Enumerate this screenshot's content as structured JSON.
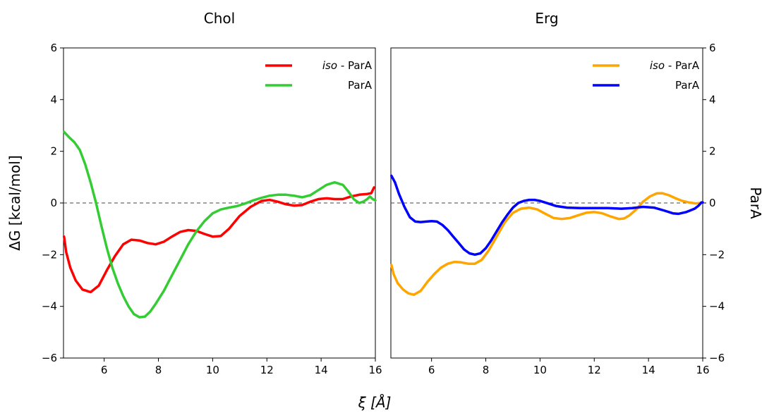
{
  "chart_data": [
    {
      "type": "line",
      "title": "Chol",
      "xlabel": "",
      "ylabel": "ΔG [kcal/mol]",
      "xlim": [
        4.5,
        16
      ],
      "ylim": [
        -6,
        6
      ],
      "xticks": [
        "6",
        "8",
        "10",
        "12",
        "14",
        "16"
      ],
      "yticks": [
        "6",
        "4",
        "2",
        "0",
        "−2",
        "−4",
        "−6"
      ],
      "reference_line": {
        "y": 0,
        "style": "dashed"
      },
      "legend_position": "top-right",
      "series": [
        {
          "name": "iso - ParA",
          "name_italic": "iso",
          "name_rest": " - ParA",
          "color": "#ff0000",
          "points": [
            [
              4.52,
              -1.3
            ],
            [
              4.6,
              -1.9
            ],
            [
              4.75,
              -2.5
            ],
            [
              4.95,
              -3.0
            ],
            [
              5.2,
              -3.35
            ],
            [
              5.5,
              -3.45
            ],
            [
              5.8,
              -3.2
            ],
            [
              6.1,
              -2.6
            ],
            [
              6.4,
              -2.05
            ],
            [
              6.7,
              -1.6
            ],
            [
              7.0,
              -1.42
            ],
            [
              7.3,
              -1.45
            ],
            [
              7.6,
              -1.55
            ],
            [
              7.9,
              -1.6
            ],
            [
              8.2,
              -1.5
            ],
            [
              8.5,
              -1.3
            ],
            [
              8.8,
              -1.12
            ],
            [
              9.1,
              -1.05
            ],
            [
              9.4,
              -1.08
            ],
            [
              9.7,
              -1.2
            ],
            [
              10.0,
              -1.3
            ],
            [
              10.3,
              -1.28
            ],
            [
              10.6,
              -1.0
            ],
            [
              11.0,
              -0.5
            ],
            [
              11.4,
              -0.15
            ],
            [
              11.8,
              0.08
            ],
            [
              12.1,
              0.12
            ],
            [
              12.4,
              0.05
            ],
            [
              12.7,
              -0.05
            ],
            [
              13.0,
              -0.1
            ],
            [
              13.3,
              -0.08
            ],
            [
              13.6,
              0.05
            ],
            [
              13.9,
              0.15
            ],
            [
              14.2,
              0.18
            ],
            [
              14.5,
              0.15
            ],
            [
              14.8,
              0.15
            ],
            [
              15.1,
              0.25
            ],
            [
              15.4,
              0.32
            ],
            [
              15.7,
              0.35
            ],
            [
              15.85,
              0.38
            ],
            [
              15.95,
              0.6
            ]
          ]
        },
        {
          "name": "ParA",
          "color": "#33cc33",
          "points": [
            [
              4.52,
              2.75
            ],
            [
              4.7,
              2.55
            ],
            [
              4.9,
              2.35
            ],
            [
              5.1,
              2.05
            ],
            [
              5.3,
              1.5
            ],
            [
              5.5,
              0.8
            ],
            [
              5.7,
              0.0
            ],
            [
              5.9,
              -0.9
            ],
            [
              6.1,
              -1.75
            ],
            [
              6.3,
              -2.5
            ],
            [
              6.5,
              -3.1
            ],
            [
              6.7,
              -3.6
            ],
            [
              6.9,
              -4.0
            ],
            [
              7.1,
              -4.3
            ],
            [
              7.3,
              -4.42
            ],
            [
              7.5,
              -4.4
            ],
            [
              7.7,
              -4.2
            ],
            [
              7.9,
              -3.9
            ],
            [
              8.2,
              -3.4
            ],
            [
              8.5,
              -2.8
            ],
            [
              8.8,
              -2.2
            ],
            [
              9.1,
              -1.6
            ],
            [
              9.4,
              -1.1
            ],
            [
              9.7,
              -0.7
            ],
            [
              10.0,
              -0.4
            ],
            [
              10.3,
              -0.25
            ],
            [
              10.6,
              -0.18
            ],
            [
              10.9,
              -0.12
            ],
            [
              11.2,
              -0.02
            ],
            [
              11.5,
              0.1
            ],
            [
              11.8,
              0.2
            ],
            [
              12.1,
              0.28
            ],
            [
              12.4,
              0.32
            ],
            [
              12.7,
              0.32
            ],
            [
              13.0,
              0.28
            ],
            [
              13.3,
              0.22
            ],
            [
              13.6,
              0.3
            ],
            [
              13.9,
              0.5
            ],
            [
              14.2,
              0.7
            ],
            [
              14.5,
              0.8
            ],
            [
              14.8,
              0.7
            ],
            [
              15.0,
              0.45
            ],
            [
              15.2,
              0.15
            ],
            [
              15.4,
              0.0
            ],
            [
              15.55,
              0.05
            ],
            [
              15.7,
              0.15
            ],
            [
              15.8,
              0.25
            ],
            [
              15.9,
              0.15
            ],
            [
              16.0,
              0.1
            ]
          ]
        }
      ]
    },
    {
      "type": "line",
      "title": "Erg",
      "xlabel": "ξ [Å]",
      "ylabel": "ParA",
      "xlim": [
        4.5,
        16
      ],
      "ylim": [
        -6,
        6
      ],
      "xticks": [
        "6",
        "8",
        "10",
        "12",
        "14",
        "16"
      ],
      "yticks": [
        "6",
        "4",
        "2",
        "0",
        "−2",
        "−4",
        "−6"
      ],
      "reference_line": {
        "y": 0,
        "style": "dashed"
      },
      "legend_position": "top-right",
      "series": [
        {
          "name": "iso - ParA",
          "name_italic": "iso",
          "name_rest": " - ParA",
          "color": "#ffa500",
          "points": [
            [
              4.52,
              -2.4
            ],
            [
              4.6,
              -2.75
            ],
            [
              4.75,
              -3.1
            ],
            [
              4.95,
              -3.35
            ],
            [
              5.15,
              -3.5
            ],
            [
              5.35,
              -3.55
            ],
            [
              5.6,
              -3.4
            ],
            [
              5.85,
              -3.05
            ],
            [
              6.1,
              -2.75
            ],
            [
              6.35,
              -2.5
            ],
            [
              6.6,
              -2.35
            ],
            [
              6.85,
              -2.28
            ],
            [
              7.1,
              -2.3
            ],
            [
              7.35,
              -2.35
            ],
            [
              7.6,
              -2.35
            ],
            [
              7.85,
              -2.2
            ],
            [
              8.1,
              -1.85
            ],
            [
              8.4,
              -1.3
            ],
            [
              8.7,
              -0.75
            ],
            [
              9.0,
              -0.38
            ],
            [
              9.3,
              -0.22
            ],
            [
              9.6,
              -0.18
            ],
            [
              9.9,
              -0.25
            ],
            [
              10.2,
              -0.42
            ],
            [
              10.5,
              -0.58
            ],
            [
              10.8,
              -0.62
            ],
            [
              11.1,
              -0.58
            ],
            [
              11.4,
              -0.48
            ],
            [
              11.7,
              -0.38
            ],
            [
              12.0,
              -0.35
            ],
            [
              12.3,
              -0.4
            ],
            [
              12.6,
              -0.52
            ],
            [
              12.9,
              -0.62
            ],
            [
              13.1,
              -0.6
            ],
            [
              13.3,
              -0.48
            ],
            [
              13.55,
              -0.25
            ],
            [
              13.8,
              0.05
            ],
            [
              14.05,
              0.25
            ],
            [
              14.3,
              0.37
            ],
            [
              14.5,
              0.38
            ],
            [
              14.75,
              0.3
            ],
            [
              15.0,
              0.18
            ],
            [
              15.25,
              0.08
            ],
            [
              15.5,
              0.02
            ],
            [
              15.75,
              -0.02
            ],
            [
              15.9,
              0.0
            ],
            [
              16.0,
              0.02
            ]
          ]
        },
        {
          "name": "ParA",
          "color": "#0000ff",
          "points": [
            [
              4.52,
              1.05
            ],
            [
              4.65,
              0.8
            ],
            [
              4.8,
              0.35
            ],
            [
              5.0,
              -0.15
            ],
            [
              5.2,
              -0.55
            ],
            [
              5.4,
              -0.72
            ],
            [
              5.6,
              -0.74
            ],
            [
              5.8,
              -0.72
            ],
            [
              6.0,
              -0.7
            ],
            [
              6.2,
              -0.72
            ],
            [
              6.4,
              -0.85
            ],
            [
              6.6,
              -1.05
            ],
            [
              6.8,
              -1.3
            ],
            [
              7.0,
              -1.55
            ],
            [
              7.2,
              -1.8
            ],
            [
              7.4,
              -1.95
            ],
            [
              7.6,
              -2.0
            ],
            [
              7.8,
              -1.95
            ],
            [
              8.0,
              -1.75
            ],
            [
              8.2,
              -1.45
            ],
            [
              8.4,
              -1.1
            ],
            [
              8.6,
              -0.75
            ],
            [
              8.8,
              -0.45
            ],
            [
              9.0,
              -0.18
            ],
            [
              9.2,
              0.0
            ],
            [
              9.4,
              0.08
            ],
            [
              9.6,
              0.12
            ],
            [
              9.8,
              0.12
            ],
            [
              10.0,
              0.08
            ],
            [
              10.3,
              -0.02
            ],
            [
              10.6,
              -0.12
            ],
            [
              11.0,
              -0.18
            ],
            [
              11.5,
              -0.2
            ],
            [
              12.0,
              -0.2
            ],
            [
              12.5,
              -0.2
            ],
            [
              13.0,
              -0.22
            ],
            [
              13.4,
              -0.2
            ],
            [
              13.8,
              -0.15
            ],
            [
              14.2,
              -0.18
            ],
            [
              14.6,
              -0.3
            ],
            [
              14.9,
              -0.4
            ],
            [
              15.1,
              -0.42
            ],
            [
              15.4,
              -0.35
            ],
            [
              15.7,
              -0.22
            ],
            [
              15.85,
              -0.1
            ],
            [
              15.95,
              0.02
            ],
            [
              16.0,
              0.02
            ]
          ]
        }
      ]
    }
  ]
}
